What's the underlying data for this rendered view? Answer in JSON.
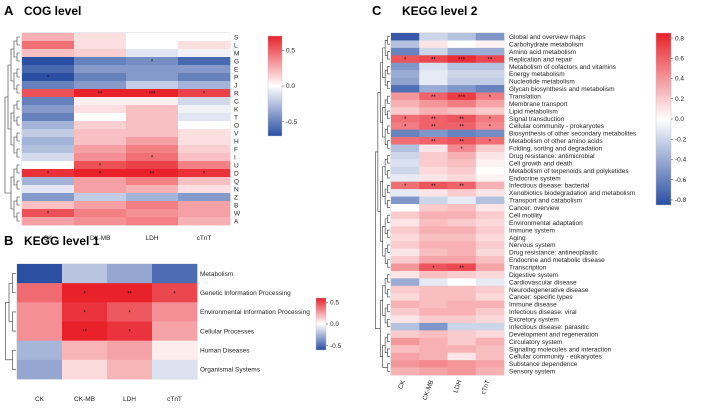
{
  "chart_data": [
    {
      "type": "heatmap",
      "panel": "A",
      "title": "COG level",
      "columns": [
        "CK",
        "CK-MB",
        "LDH",
        "cTnT"
      ],
      "rows": [
        "S",
        "L",
        "M",
        "G",
        "E",
        "P",
        "J",
        "R",
        "C",
        "K",
        "T",
        "O",
        "V",
        "H",
        "F",
        "I",
        "U",
        "D",
        "Q",
        "N",
        "Z",
        "B",
        "W",
        "A"
      ],
      "values": [
        [
          0.25,
          0.1,
          0.0,
          0.0
        ],
        [
          0.45,
          0.1,
          0.0,
          0.1
        ],
        [
          0.2,
          0.15,
          -0.1,
          -0.05
        ],
        [
          -0.7,
          -0.5,
          -0.45,
          -0.6
        ],
        [
          -0.6,
          -0.4,
          -0.4,
          -0.4
        ],
        [
          -0.7,
          -0.5,
          -0.4,
          -0.5
        ],
        [
          -0.5,
          -0.4,
          -0.2,
          -0.3
        ],
        [
          0.55,
          0.7,
          0.8,
          0.6
        ],
        [
          -0.5,
          0.05,
          0.05,
          -0.15
        ],
        [
          -0.4,
          0.1,
          0.2,
          -0.05
        ],
        [
          -0.5,
          0.0,
          0.2,
          -0.1
        ],
        [
          -0.3,
          0.15,
          0.2,
          0.0
        ],
        [
          -0.2,
          0.2,
          0.2,
          0.1
        ],
        [
          -0.3,
          0.2,
          0.3,
          0.1
        ],
        [
          -0.25,
          0.3,
          0.4,
          0.15
        ],
        [
          -0.15,
          0.35,
          0.45,
          0.2
        ],
        [
          0.0,
          0.55,
          0.6,
          0.4
        ],
        [
          0.65,
          0.7,
          0.75,
          0.65
        ],
        [
          -0.3,
          0.3,
          0.4,
          0.2
        ],
        [
          -0.1,
          0.3,
          0.25,
          0.1
        ],
        [
          -0.4,
          -0.2,
          -0.3,
          -0.4
        ],
        [
          0.2,
          0.3,
          0.4,
          0.3
        ],
        [
          0.55,
          0.4,
          0.35,
          0.3
        ],
        [
          0.3,
          0.35,
          0.4,
          0.25
        ]
      ],
      "stars": [
        [
          "",
          "",
          "",
          ""
        ],
        [
          "",
          "",
          "",
          ""
        ],
        [
          "",
          "",
          "",
          ""
        ],
        [
          "",
          "",
          "*",
          ""
        ],
        [
          "",
          "",
          "",
          ""
        ],
        [
          "*",
          "",
          "",
          ""
        ],
        [
          "",
          "",
          "",
          ""
        ],
        [
          "",
          "**",
          "***",
          "*"
        ],
        [
          "",
          "",
          "",
          ""
        ],
        [
          "",
          "",
          "",
          ""
        ],
        [
          "",
          "",
          "",
          ""
        ],
        [
          "",
          "",
          "",
          ""
        ],
        [
          "",
          "",
          "",
          ""
        ],
        [
          "",
          "",
          "",
          ""
        ],
        [
          "",
          "",
          "",
          ""
        ],
        [
          "",
          "",
          "*",
          ""
        ],
        [
          "",
          "*",
          "",
          ""
        ],
        [
          "*",
          "*",
          "**",
          "*"
        ],
        [
          "",
          "",
          "",
          ""
        ],
        [
          "",
          "",
          "",
          ""
        ],
        [
          "",
          "",
          "",
          ""
        ],
        [
          "",
          "",
          "",
          ""
        ],
        [
          "*",
          "",
          "",
          ""
        ],
        [
          "",
          "",
          "",
          ""
        ]
      ],
      "colorbar": {
        "min": -0.7,
        "max": 0.7,
        "ticks": [
          "0.5",
          "0.0",
          "-0.5"
        ]
      }
    },
    {
      "type": "heatmap",
      "panel": "B",
      "title": "KEGG level 1",
      "columns": [
        "CK",
        "CK-MB",
        "LDH",
        "cTnT"
      ],
      "rows": [
        "Metabolism",
        "Genetic Information Processing",
        "Environmental Information Processing",
        "Cellular Processes",
        "Human Diseases",
        "Organismal Systems"
      ],
      "values": [
        [
          -0.7,
          -0.2,
          -0.3,
          -0.5
        ],
        [
          0.4,
          0.6,
          0.7,
          0.5
        ],
        [
          0.3,
          0.55,
          0.45,
          0.3
        ],
        [
          0.3,
          0.65,
          0.55,
          0.25
        ],
        [
          -0.25,
          0.2,
          0.25,
          0.05
        ],
        [
          -0.3,
          0.1,
          0.2,
          -0.1
        ]
      ],
      "stars": [
        [
          "",
          "",
          "",
          ""
        ],
        [
          "",
          "*",
          "**",
          "*"
        ],
        [
          "",
          "*",
          "*",
          ""
        ],
        [
          "",
          "**",
          "*",
          ""
        ],
        [
          "",
          "",
          "",
          ""
        ],
        [
          "",
          "",
          "",
          ""
        ]
      ],
      "colorbar": {
        "min": -0.6,
        "max": 0.6,
        "ticks": [
          "0.5",
          "0.0",
          "-0.5"
        ]
      }
    },
    {
      "type": "heatmap",
      "panel": "C",
      "title": "KEGG level 2",
      "columns": [
        "CK",
        "CK-MB",
        "LDH",
        "cTnT"
      ],
      "rows": [
        "Global and overview maps",
        "Carbohydrate metabolism",
        "Amino acid metabolism",
        "Replication and repair",
        "Metabolism of cofactors and vitamins",
        "Energy metabolism",
        "Nucleotide metabolism",
        "Glycan biosynthesis and metabolism",
        "Translation",
        "Membrane transport",
        "Lipid metabolism",
        "Signal transduction",
        "Cellular community - prokaryotes",
        "Biosynthesis of other secondary metabolites",
        "Metabolism of other amino acids",
        "Folding, sorting and degradation",
        "Drug resistance: antimicrobial",
        "Cell growth and death",
        "Metabolism of terpenoids and polyketides",
        "Endocrine system",
        "Infectious disease: bacterial",
        "Xenobiotics biodegradation and metabolism",
        "Transport and catabolism",
        "Cancer: overview",
        "Cell motility",
        "Environmental adaptation",
        "Immune system",
        "Aging",
        "Nervous system",
        "Drug resistance: antineoplastic",
        "Endocrine and metabolic disease",
        "Transcription",
        "Digestive system",
        "Cardiovascular disease",
        "Neurodegenerative disease",
        "Cancer: specific types",
        "Immune disease",
        "Infectious disease: viral",
        "Excretory system",
        "Infectious disease: parasitic",
        "Development and regeneration",
        "Circulatory system",
        "Signaling molecules and interaction",
        "Cellular community - eukaryotes",
        "Substance dependence",
        "Sensory system"
      ],
      "values": [
        [
          -0.8,
          -0.2,
          -0.3,
          -0.5
        ],
        [
          -0.3,
          0.1,
          0.0,
          0.05
        ],
        [
          -0.6,
          -0.2,
          -0.4,
          -0.4
        ],
        [
          0.65,
          0.7,
          0.8,
          0.7
        ],
        [
          -0.5,
          -0.15,
          -0.3,
          -0.3
        ],
        [
          -0.4,
          -0.1,
          -0.2,
          -0.2
        ],
        [
          -0.45,
          -0.1,
          -0.25,
          -0.25
        ],
        [
          -0.7,
          -0.4,
          -0.5,
          -0.6
        ],
        [
          0.4,
          0.6,
          0.75,
          0.5
        ],
        [
          0.3,
          0.4,
          0.5,
          0.35
        ],
        [
          0.2,
          0.3,
          0.25,
          0.2
        ],
        [
          0.55,
          0.6,
          0.65,
          0.5
        ],
        [
          0.5,
          0.6,
          0.6,
          0.45
        ],
        [
          -0.6,
          -0.5,
          -0.6,
          -0.55
        ],
        [
          0.55,
          0.6,
          0.65,
          0.55
        ],
        [
          -0.3,
          0.1,
          0.45,
          0.2
        ],
        [
          -0.2,
          0.2,
          0.3,
          0.1
        ],
        [
          -0.15,
          0.2,
          0.25,
          0.05
        ],
        [
          -0.2,
          0.15,
          0.2,
          0.0
        ],
        [
          -0.1,
          0.1,
          0.15,
          0.05
        ],
        [
          0.55,
          0.65,
          0.6,
          0.3
        ],
        [
          -0.1,
          0.1,
          0.2,
          0.1
        ],
        [
          -0.5,
          -0.2,
          -0.1,
          -0.3
        ],
        [
          0.0,
          0.2,
          0.25,
          0.1
        ],
        [
          0.2,
          0.3,
          0.3,
          0.2
        ],
        [
          0.1,
          0.25,
          0.2,
          0.15
        ],
        [
          0.2,
          0.3,
          0.3,
          0.2
        ],
        [
          0.15,
          0.25,
          0.25,
          0.15
        ],
        [
          0.2,
          0.3,
          0.3,
          0.2
        ],
        [
          0.1,
          0.25,
          0.3,
          0.15
        ],
        [
          0.2,
          0.35,
          0.35,
          0.25
        ],
        [
          0.4,
          0.65,
          0.7,
          0.35
        ],
        [
          0.1,
          0.25,
          0.2,
          0.15
        ],
        [
          -0.4,
          -0.1,
          0.0,
          -0.1
        ],
        [
          0.2,
          0.25,
          0.25,
          0.2
        ],
        [
          0.15,
          0.25,
          0.25,
          0.15
        ],
        [
          0.3,
          0.25,
          0.3,
          0.3
        ],
        [
          0.2,
          0.3,
          0.3,
          0.2
        ],
        [
          0.1,
          0.2,
          0.2,
          0.15
        ],
        [
          -0.3,
          -0.5,
          -0.2,
          -0.2
        ],
        [
          0.2,
          0.25,
          0.2,
          0.15
        ],
        [
          0.4,
          0.3,
          0.2,
          0.3
        ],
        [
          0.25,
          0.3,
          0.3,
          0.25
        ],
        [
          0.35,
          0.3,
          0.1,
          0.25
        ],
        [
          0.4,
          0.45,
          0.4,
          0.35
        ],
        [
          0.3,
          0.35,
          0.4,
          0.3
        ]
      ],
      "stars": [
        [
          "",
          "",
          "",
          ""
        ],
        [
          "",
          "",
          "",
          ""
        ],
        [
          "",
          "",
          "",
          ""
        ],
        [
          "*",
          "**",
          "***",
          "**"
        ],
        [
          "",
          "",
          "",
          ""
        ],
        [
          "",
          "",
          "",
          ""
        ],
        [
          "",
          "",
          "",
          ""
        ],
        [
          "",
          "",
          "",
          ""
        ],
        [
          "",
          "**",
          "***",
          "*"
        ],
        [
          "",
          "",
          "",
          ""
        ],
        [
          "",
          "",
          "",
          ""
        ],
        [
          "*",
          "**",
          "**",
          "*"
        ],
        [
          "*",
          "**",
          "**",
          "*"
        ],
        [
          "",
          "",
          "",
          ""
        ],
        [
          "",
          "**",
          "**",
          "*"
        ],
        [
          "",
          "",
          "*",
          ""
        ],
        [
          "",
          "",
          "",
          ""
        ],
        [
          "",
          "",
          "",
          ""
        ],
        [
          "",
          "",
          "",
          ""
        ],
        [
          "",
          "",
          "",
          ""
        ],
        [
          "*",
          "**",
          "**",
          ""
        ],
        [
          "",
          "",
          "",
          ""
        ],
        [
          "",
          "",
          "",
          ""
        ],
        [
          "",
          "",
          "",
          ""
        ],
        [
          "",
          "",
          "",
          ""
        ],
        [
          "",
          "",
          "",
          ""
        ],
        [
          "",
          "",
          "",
          ""
        ],
        [
          "",
          "",
          "",
          ""
        ],
        [
          "",
          "",
          "",
          ""
        ],
        [
          "",
          "",
          "",
          ""
        ],
        [
          "",
          "",
          "",
          ""
        ],
        [
          "",
          "*",
          "**",
          ""
        ],
        [
          "",
          "",
          "",
          ""
        ],
        [
          "",
          "",
          "",
          ""
        ],
        [
          "",
          "",
          "",
          ""
        ],
        [
          "",
          "",
          "",
          ""
        ],
        [
          "",
          "",
          "",
          ""
        ],
        [
          "",
          "",
          "",
          ""
        ],
        [
          "",
          "",
          "",
          ""
        ],
        [
          "",
          "",
          "",
          ""
        ],
        [
          "",
          "",
          "",
          ""
        ],
        [
          "",
          "",
          "",
          ""
        ],
        [
          "",
          "",
          "",
          ""
        ],
        [
          "",
          "",
          "",
          ""
        ],
        [
          "",
          "",
          "",
          ""
        ],
        [
          "",
          "",
          "",
          ""
        ]
      ],
      "colorbar": {
        "min": -0.85,
        "max": 0.85,
        "ticks": [
          "0.8",
          "0.6",
          "0.4",
          "0.2",
          "0.0",
          "-0.2",
          "-0.4",
          "-0.6",
          "-0.8"
        ]
      }
    }
  ]
}
